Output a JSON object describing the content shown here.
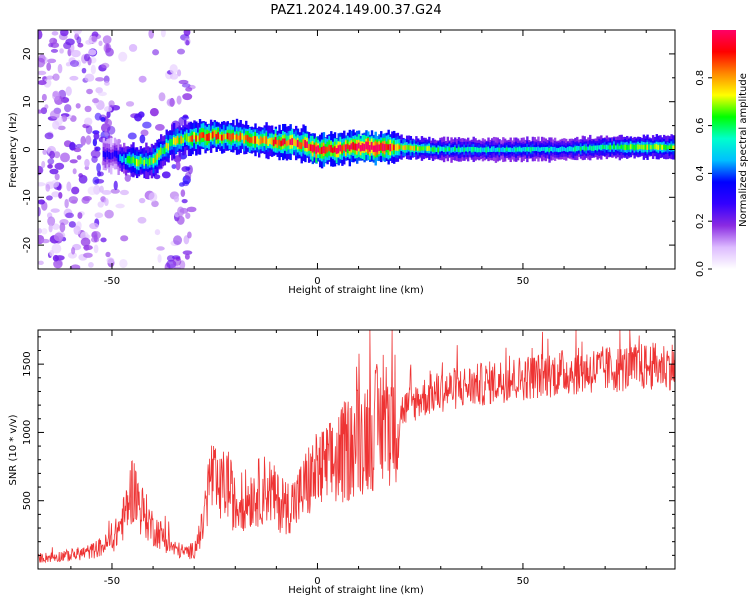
{
  "title": "PAZ1.2024.149.00.37.G24",
  "chart_data": [
    {
      "type": "heatmap",
      "title": "PAZ1.2024.149.00.37.G24",
      "xlabel": "Height of straight line (km)",
      "ylabel": "Frequency (Hz)",
      "xlim": [
        -68,
        87
      ],
      "ylim": [
        -25,
        25
      ],
      "x_ticks": [
        "-50",
        "0",
        "50"
      ],
      "x_tick_values": [
        -50,
        0,
        50
      ],
      "y_ticks": [
        "20",
        "10",
        "0",
        "-10",
        "-20"
      ],
      "y_tick_values": [
        20,
        10,
        0,
        -10,
        -20
      ],
      "colorbar": {
        "label": "Normalized spectral amplitude",
        "range": [
          0,
          1
        ],
        "ticks": [
          "0.0",
          "0.2",
          "0.4",
          "0.6",
          "0.8"
        ],
        "tick_values": [
          0.0,
          0.2,
          0.4,
          0.6,
          0.8
        ],
        "colormap": [
          "#ffffff",
          "#ddbbff",
          "#8a2be2",
          "#3300ff",
          "#0000ff",
          "#00bfff",
          "#00ffcc",
          "#00ff00",
          "#ffff00",
          "#ff8800",
          "#ff0000",
          "#ff0066"
        ]
      },
      "ridge": {
        "x": [
          -50,
          -45,
          -40,
          -35,
          -30,
          -25,
          -20,
          -15,
          -10,
          -5,
          0,
          5,
          10,
          15,
          20,
          30,
          40,
          50,
          60,
          70,
          80,
          87
        ],
        "y": [
          -1,
          -2.5,
          -2.5,
          2,
          2.5,
          3,
          2.5,
          2,
          1.5,
          1.5,
          0,
          0,
          0.5,
          0.5,
          0.5,
          0,
          0,
          0,
          0,
          0.5,
          0.5,
          0.5
        ],
        "amplitude": [
          0.25,
          0.55,
          0.6,
          0.6,
          0.7,
          0.75,
          0.7,
          0.7,
          0.75,
          0.8,
          0.9,
          0.85,
          0.9,
          0.95,
          0.7,
          0.5,
          0.45,
          0.45,
          0.45,
          0.5,
          0.6,
          0.6
        ]
      },
      "noise_region_x": [
        -68,
        -30
      ]
    },
    {
      "type": "line",
      "xlabel": "Height of straight line (km)",
      "ylabel": "SNR (10 * v/v)",
      "xlim": [
        -68,
        87
      ],
      "ylim": [
        0,
        1750
      ],
      "x_ticks": [
        "-50",
        "0",
        "50"
      ],
      "x_tick_values": [
        -50,
        0,
        50
      ],
      "y_ticks": [
        "500",
        "1000",
        "1500"
      ],
      "y_tick_values": [
        500,
        1000,
        1500
      ],
      "series": [
        {
          "color": "#ee3333",
          "x": [
            -68,
            -60,
            -55,
            -50,
            -47,
            -45,
            -43,
            -40,
            -38,
            -35,
            -32,
            -30,
            -28,
            -26,
            -24,
            -22,
            -20,
            -18,
            -15,
            -12,
            -10,
            -8,
            -5,
            -2,
            0,
            3,
            5,
            8,
            10,
            12,
            15,
            18,
            20,
            25,
            30,
            35,
            40,
            45,
            50,
            55,
            60,
            65,
            70,
            75,
            80,
            87
          ],
          "y": [
            80,
            100,
            130,
            200,
            380,
            600,
            450,
            300,
            250,
            150,
            120,
            140,
            300,
            700,
            550,
            650,
            450,
            500,
            550,
            600,
            500,
            450,
            500,
            650,
            700,
            750,
            800,
            900,
            950,
            1000,
            1050,
            1100,
            1150,
            1250,
            1300,
            1330,
            1350,
            1380,
            1400,
            1420,
            1440,
            1450,
            1460,
            1470,
            1480,
            1490
          ]
        }
      ]
    }
  ]
}
